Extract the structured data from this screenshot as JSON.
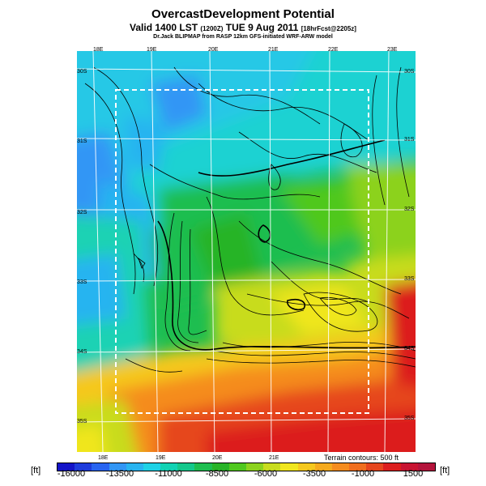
{
  "header": {
    "title": "OvercastDevelopment Potential",
    "subtitle_main": "Valid 1400 LST ",
    "subtitle_small": "(1200Z)",
    "subtitle_date": " TUE 9 Aug 2011 ",
    "subtitle_forecast": "[18hrFcst@2205z]",
    "credit": "Dr.Jack BLIPMAP from RASP 12km GFS-initiated WRF-ARW model"
  },
  "map": {
    "top_longitudes": [
      "18E",
      "19E",
      "20E",
      "21E",
      "22E",
      "23E"
    ],
    "bottom_longitudes": [
      "18E",
      "19E",
      "20E",
      "21E"
    ],
    "left_latitudes": [
      "30S",
      "31S",
      "32S",
      "33S",
      "34S",
      "35S"
    ],
    "right_latitudes": [
      "30S",
      "31S",
      "32S",
      "33S",
      "34S",
      "35S"
    ],
    "terrain_note": "Terrain contours: 500 ft"
  },
  "legend": {
    "unit_left": "[ft]",
    "unit_right": "[ft]",
    "labels": [
      "-16000",
      "-13500",
      "-11000",
      "-8500",
      "-6000",
      "-3500",
      "-1000",
      "1500"
    ],
    "colors": [
      "#1414c8",
      "#1e3cdc",
      "#2864f0",
      "#3296f5",
      "#28b4f0",
      "#1ed2e6",
      "#10d2b4",
      "#14c88c",
      "#1ebe50",
      "#28b428",
      "#50c81e",
      "#8cd21e",
      "#c8dc1e",
      "#f0e61e",
      "#f5c81e",
      "#f5aa1e",
      "#f58c1e",
      "#f06e1e",
      "#e6461e",
      "#dc1e1e",
      "#c81432",
      "#b4143c"
    ]
  }
}
